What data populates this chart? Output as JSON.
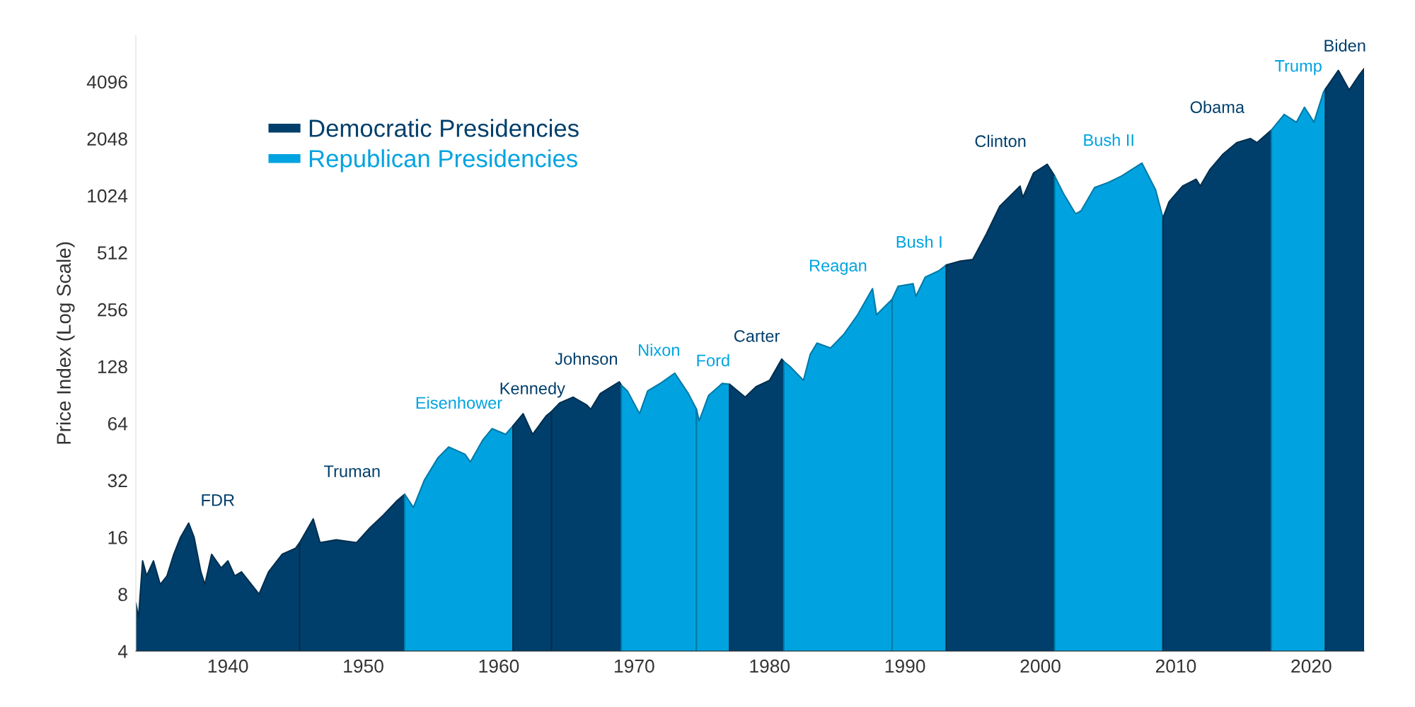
{
  "chart_data": {
    "type": "area",
    "ylabel": "Price Index (Log Scale)",
    "log": "y",
    "legend": "top left",
    "grid": false,
    "series": [
      {
        "name": "FDR",
        "color": "#003f6b",
        "x": [
          1933.2,
          1933.4,
          1933.7,
          1934.0,
          1934.5,
          1935.0,
          1935.5,
          1936.0,
          1936.5,
          1937.1,
          1937.5,
          1938.0,
          1938.3,
          1938.8,
          1939.5,
          1940.0,
          1940.5,
          1941.0,
          1942.3,
          1943.0,
          1944.0,
          1945.0,
          1945.3
        ],
        "values": [
          7.2,
          6,
          12,
          10,
          12,
          9,
          10,
          13,
          16,
          19,
          16,
          10.5,
          9,
          13,
          11,
          12,
          10,
          10.5,
          8,
          10.5,
          13,
          14,
          15
        ]
      },
      {
        "name": "Truman",
        "color": "#003f6b",
        "x": [
          1945.3,
          1946.3,
          1946.8,
          1948.0,
          1949.5,
          1950.5,
          1951.5,
          1952.5,
          1953.05
        ],
        "values": [
          15,
          20,
          15,
          15.5,
          15,
          18,
          21,
          25,
          27
        ]
      },
      {
        "name": "Eisenhower",
        "color": "#00a3e0",
        "x": [
          1953.05,
          1953.7,
          1954.5,
          1955.5,
          1956.3,
          1957.5,
          1957.9,
          1958.8,
          1959.5,
          1960.5,
          1961.05
        ],
        "values": [
          27,
          23,
          32,
          42,
          48,
          44,
          40,
          52,
          60,
          56,
          62
        ]
      },
      {
        "name": "Kennedy",
        "color": "#003f6b",
        "x": [
          1961.05,
          1961.8,
          1962.5,
          1963.5,
          1963.9
        ],
        "values": [
          62,
          72,
          56,
          70,
          74
        ]
      },
      {
        "name": "Johnson",
        "color": "#003f6b",
        "x": [
          1963.9,
          1964.5,
          1965.5,
          1966.5,
          1966.8,
          1967.5,
          1968.9,
          1969.05
        ],
        "values": [
          74,
          82,
          88,
          80,
          76,
          92,
          106,
          102
        ]
      },
      {
        "name": "Nixon",
        "color": "#00a3e0",
        "x": [
          1969.05,
          1969.5,
          1970.4,
          1971.0,
          1972.0,
          1973.0,
          1974.0,
          1974.6
        ],
        "values": [
          102,
          95,
          72,
          95,
          105,
          118,
          92,
          76
        ]
      },
      {
        "name": "Ford",
        "color": "#00a3e0",
        "x": [
          1974.6,
          1974.8,
          1975.5,
          1976.5,
          1977.05
        ],
        "values": [
          76,
          66,
          90,
          104,
          103
        ]
      },
      {
        "name": "Carter",
        "color": "#003f6b",
        "x": [
          1977.05,
          1978.2,
          1979.0,
          1980.0,
          1980.9,
          1981.05
        ],
        "values": [
          103,
          88,
          100,
          108,
          140,
          136
        ]
      },
      {
        "name": "Reagan",
        "color": "#00a3e0",
        "x": [
          1981.05,
          1981.5,
          1982.5,
          1983.0,
          1983.5,
          1984.5,
          1985.5,
          1986.5,
          1987.6,
          1987.9,
          1988.5,
          1989.05
        ],
        "values": [
          136,
          128,
          108,
          148,
          170,
          160,
          190,
          240,
          330,
          240,
          265,
          290
        ]
      },
      {
        "name": "Bush I",
        "color": "#00a3e0",
        "x": [
          1989.05,
          1989.5,
          1990.6,
          1990.8,
          1991.5,
          1992.5,
          1993.05
        ],
        "values": [
          290,
          340,
          350,
          300,
          380,
          410,
          440
        ]
      },
      {
        "name": "Clinton",
        "color": "#003f6b",
        "x": [
          1993.05,
          1994.0,
          1995.0,
          1996.0,
          1997.0,
          1998.5,
          1998.7,
          1999.5,
          2000.5,
          2001.05
        ],
        "values": [
          440,
          460,
          470,
          640,
          900,
          1150,
          1000,
          1350,
          1500,
          1300
        ]
      },
      {
        "name": "Bush II",
        "color": "#00a3e0",
        "x": [
          2001.05,
          2001.7,
          2002.6,
          2003.0,
          2004.0,
          2005.0,
          2006.0,
          2007.5,
          2008.5,
          2009.05
        ],
        "values": [
          1300,
          1050,
          820,
          850,
          1130,
          1200,
          1300,
          1520,
          1100,
          780
        ]
      },
      {
        "name": "Obama",
        "color": "#003f6b",
        "x": [
          2009.05,
          2009.5,
          2010.5,
          2011.5,
          2011.8,
          2012.5,
          2013.5,
          2014.5,
          2015.5,
          2016.0,
          2017.05
        ],
        "values": [
          780,
          950,
          1150,
          1250,
          1150,
          1400,
          1700,
          1950,
          2050,
          1950,
          2270
        ]
      },
      {
        "name": "Trump",
        "color": "#00a3e0",
        "x": [
          2017.05,
          2018.0,
          2018.9,
          2019.5,
          2020.2,
          2020.9,
          2021.05
        ],
        "values": [
          2270,
          2750,
          2500,
          3000,
          2500,
          3600,
          3750
        ]
      },
      {
        "name": "Biden",
        "color": "#003f6b",
        "x": [
          2021.05,
          2022.0,
          2022.8,
          2023.5,
          2023.9
        ],
        "values": [
          3750,
          4700,
          3700,
          4400,
          4800
        ]
      }
    ],
    "xlim": [
      1933.2,
      2023.9
    ],
    "ylim": [
      4,
      7200
    ],
    "xticks": [
      1940,
      1950,
      1960,
      1970,
      1980,
      1990,
      2000,
      2010,
      2020
    ],
    "yticks": [
      4,
      8,
      16,
      32,
      64,
      128,
      256,
      512,
      1024,
      2048,
      4096
    ],
    "annotations": [
      "Democratic Presidencies",
      "Republican Presidencies"
    ]
  }
}
